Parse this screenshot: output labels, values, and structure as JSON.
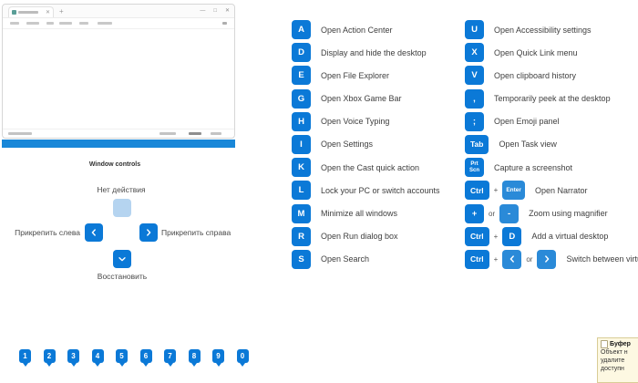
{
  "window_controls": {
    "title": "Window controls",
    "up_label": "Нет действия",
    "left_label": "Прикрепить слева",
    "right_label": "Прикрепить справа",
    "down_label": "Восстановить"
  },
  "accent_color": "#0b79d7",
  "columns": [
    {
      "items": [
        {
          "tokens": [
            {
              "key": "A"
            }
          ],
          "desc": "Open Action Center"
        },
        {
          "tokens": [
            {
              "key": "D"
            }
          ],
          "desc": "Display and hide the desktop"
        },
        {
          "tokens": [
            {
              "key": "E"
            }
          ],
          "desc": "Open File Explorer"
        },
        {
          "tokens": [
            {
              "key": "G"
            }
          ],
          "desc": "Open Xbox Game Bar"
        },
        {
          "tokens": [
            {
              "key": "H"
            }
          ],
          "desc": "Open Voice Typing"
        },
        {
          "tokens": [
            {
              "key": "I"
            }
          ],
          "desc": "Open Settings"
        },
        {
          "tokens": [
            {
              "key": "K"
            }
          ],
          "desc": "Open the Cast quick action"
        },
        {
          "tokens": [
            {
              "key": "L"
            }
          ],
          "desc": "Lock your PC or switch accounts"
        },
        {
          "tokens": [
            {
              "key": "M"
            }
          ],
          "desc": "Minimize all windows"
        },
        {
          "tokens": [
            {
              "key": "R"
            }
          ],
          "desc": "Open Run dialog box"
        },
        {
          "tokens": [
            {
              "key": "S"
            }
          ],
          "desc": "Open Search"
        }
      ]
    },
    {
      "items": [
        {
          "tokens": [
            {
              "key": "U"
            }
          ],
          "desc": "Open Accessibility settings"
        },
        {
          "tokens": [
            {
              "key": "X"
            }
          ],
          "desc": "Open Quick Link menu"
        },
        {
          "tokens": [
            {
              "key": "V"
            }
          ],
          "desc": "Open clipboard history"
        },
        {
          "tokens": [
            {
              "key": ","
            }
          ],
          "desc": "Temporarily peek at the desktop"
        },
        {
          "tokens": [
            {
              "key": ";"
            }
          ],
          "desc": "Open Emoji panel"
        },
        {
          "tokens": [
            {
              "key": "Tab",
              "wide": true
            }
          ],
          "desc": "Open Task view"
        },
        {
          "tokens": [
            {
              "key": "Prt\nScn",
              "prt": true
            }
          ],
          "desc": "Capture a screenshot"
        },
        {
          "tokens": [
            {
              "key": "Ctrl",
              "wide": true
            },
            {
              "text": "+"
            },
            {
              "key": "Enter",
              "wide": true,
              "small": true,
              "lite": true
            }
          ],
          "desc": "Open Narrator"
        },
        {
          "tokens": [
            {
              "key": "+"
            },
            {
              "text": "or"
            },
            {
              "key": "-",
              "lite": true
            }
          ],
          "desc": "Zoom using magnifier"
        },
        {
          "tokens": [
            {
              "key": "Ctrl",
              "wide": true
            },
            {
              "text": "+"
            },
            {
              "key": "D"
            }
          ],
          "desc": "Add a virtual desktop"
        },
        {
          "tokens": [
            {
              "key": "Ctrl",
              "wide": true
            },
            {
              "text": "+"
            },
            {
              "icon": "chevron-left",
              "lite": true
            },
            {
              "text": "or"
            },
            {
              "icon": "chevron-right",
              "lite": true
            }
          ],
          "desc": "Switch between virtual desktops"
        }
      ]
    }
  ],
  "number_row": [
    "1",
    "2",
    "3",
    "4",
    "5",
    "6",
    "7",
    "8",
    "9",
    "0"
  ],
  "tooltip": {
    "title": "Буфер",
    "lines": [
      "Объект н",
      "удалите",
      "доступн"
    ]
  }
}
